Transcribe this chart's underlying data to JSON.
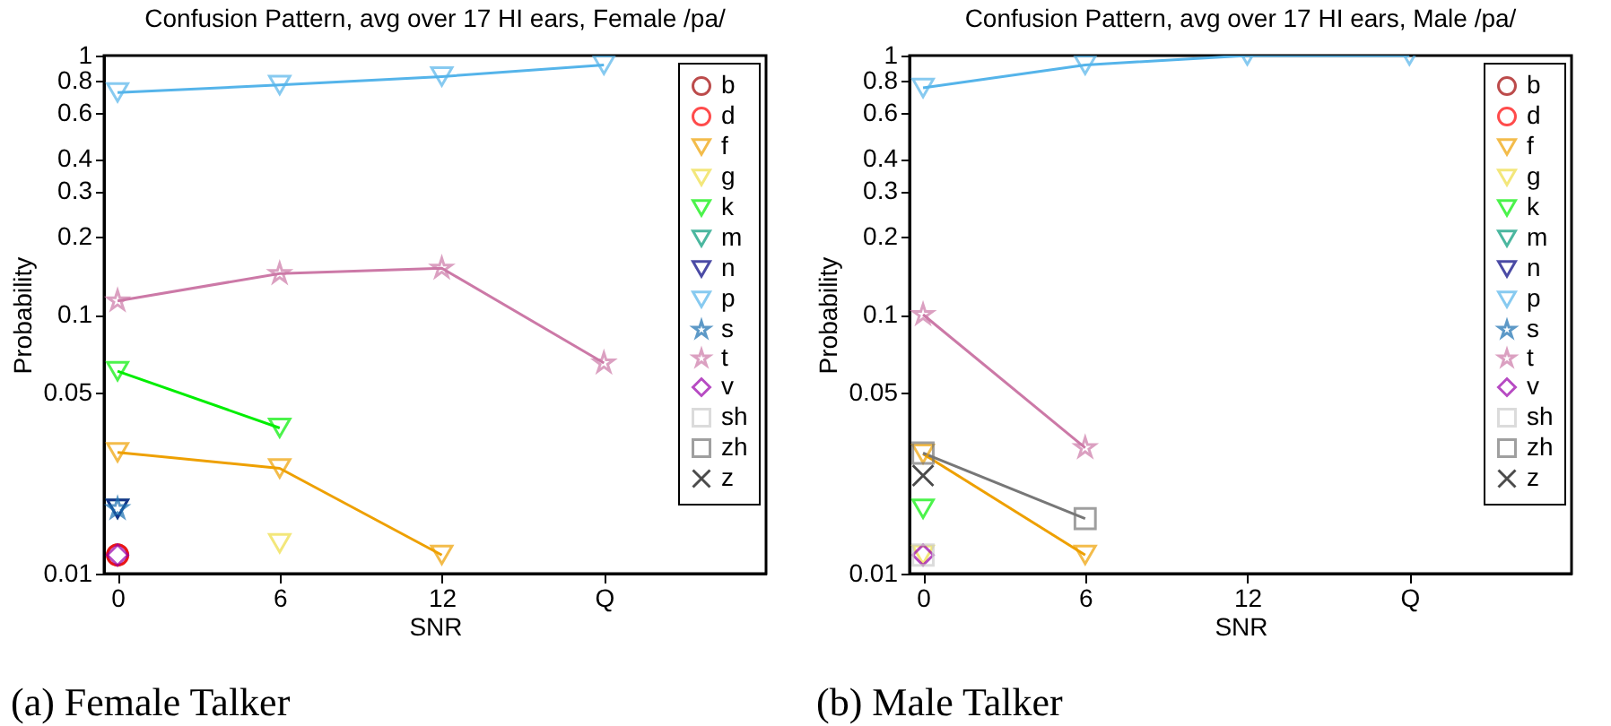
{
  "chart_data": [
    {
      "type": "line",
      "title": "Confusion Pattern, avg over 17 HI ears, Female /pa/",
      "xlabel": "SNR",
      "ylabel": "Probability",
      "annotations": [
        "(a) Female Talker"
      ],
      "x": [
        0,
        6,
        12,
        18
      ],
      "xlim": [
        -0.5,
        24
      ],
      "xticks": [
        0,
        6,
        12,
        {
          "value": 18,
          "label": "Q"
        }
      ],
      "ylim": [
        0.01,
        1
      ],
      "yticks": [
        0.01,
        0.05,
        0.1,
        0.2,
        0.3,
        0.4,
        0.6,
        0.8,
        1
      ],
      "log": true,
      "grid": false,
      "legend": "top right",
      "series": [
        {
          "name": "b",
          "color": "#a00000",
          "marker": "circle",
          "values": [
            0.0118,
            null,
            null,
            null
          ]
        },
        {
          "name": "d",
          "color": "#ff0000",
          "marker": "circle",
          "values": [
            0.0118,
            null,
            null,
            null
          ]
        },
        {
          "name": "f",
          "color": "#eea000",
          "marker": "triangle",
          "values": [
            0.0294,
            0.0255,
            0.0118,
            null
          ]
        },
        {
          "name": "g",
          "color": "#eedd44",
          "marker": "triangle",
          "values": [
            null,
            0.0131,
            null,
            null
          ]
        },
        {
          "name": "k",
          "color": "#00ee00",
          "marker": "triangle",
          "values": [
            0.0605,
            0.0365,
            null,
            null
          ]
        },
        {
          "name": "m",
          "color": "#009977",
          "marker": "triangle",
          "values": [
            0.0178,
            null,
            null,
            null
          ]
        },
        {
          "name": "n",
          "color": "#000080",
          "marker": "triangle",
          "values": [
            0.0178,
            null,
            null,
            null
          ]
        },
        {
          "name": "p",
          "color": "#55b4ea",
          "marker": "triangle",
          "values": [
            0.72,
            0.77,
            0.83,
            0.92
          ]
        },
        {
          "name": "s",
          "color": "#1a6fb0",
          "marker": "star",
          "values": [
            0.0178,
            null,
            null,
            null
          ]
        },
        {
          "name": "t",
          "color": "#cc79a7",
          "marker": "star",
          "values": [
            0.113,
            0.144,
            0.151,
            0.065
          ]
        },
        {
          "name": "v",
          "color": "#9900aa",
          "marker": "diamond",
          "values": [
            0.0118,
            null,
            null,
            null
          ]
        },
        {
          "name": "sh",
          "color": "#cccccc",
          "marker": "square",
          "values": [
            null,
            null,
            null,
            null
          ]
        },
        {
          "name": "zh",
          "color": "#777777",
          "marker": "square",
          "values": [
            null,
            null,
            null,
            null
          ]
        },
        {
          "name": "z",
          "color": "#000000",
          "marker": "cross",
          "values": [
            null,
            null,
            null,
            null
          ]
        }
      ]
    },
    {
      "type": "line",
      "title": "Confusion Pattern, avg over 17 HI ears, Male /pa/",
      "xlabel": "SNR",
      "ylabel": "Probability",
      "annotations": [
        "(b) Male Talker"
      ],
      "x": [
        0,
        6,
        12,
        18
      ],
      "xlim": [
        -0.5,
        24
      ],
      "xticks": [
        0,
        6,
        12,
        {
          "value": 18,
          "label": "Q"
        }
      ],
      "ylim": [
        0.01,
        1
      ],
      "yticks": [
        0.01,
        0.05,
        0.1,
        0.2,
        0.3,
        0.4,
        0.6,
        0.8,
        1
      ],
      "log": true,
      "grid": false,
      "legend": "top right",
      "series": [
        {
          "name": "b",
          "color": "#a00000",
          "marker": "circle",
          "values": [
            null,
            null,
            null,
            null
          ]
        },
        {
          "name": "d",
          "color": "#ff0000",
          "marker": "circle",
          "values": [
            null,
            null,
            null,
            null
          ]
        },
        {
          "name": "f",
          "color": "#eea000",
          "marker": "triangle",
          "values": [
            0.029,
            0.0118,
            null,
            null
          ]
        },
        {
          "name": "g",
          "color": "#eedd44",
          "marker": "triangle",
          "values": [
            0.0118,
            null,
            null,
            null
          ]
        },
        {
          "name": "k",
          "color": "#00ee00",
          "marker": "triangle",
          "values": [
            0.0178,
            null,
            null,
            null
          ]
        },
        {
          "name": "m",
          "color": "#009977",
          "marker": "triangle",
          "values": [
            null,
            null,
            null,
            null
          ]
        },
        {
          "name": "n",
          "color": "#000080",
          "marker": "triangle",
          "values": [
            null,
            null,
            null,
            null
          ]
        },
        {
          "name": "p",
          "color": "#55b4ea",
          "marker": "triangle",
          "values": [
            0.75,
            0.92,
            1,
            1
          ]
        },
        {
          "name": "s",
          "color": "#1a6fb0",
          "marker": "star",
          "values": [
            null,
            null,
            null,
            null
          ]
        },
        {
          "name": "t",
          "color": "#cc79a7",
          "marker": "star",
          "values": [
            0.1,
            0.0306,
            null,
            null
          ]
        },
        {
          "name": "v",
          "color": "#9900aa",
          "marker": "diamond",
          "values": [
            0.0118,
            null,
            null,
            null
          ]
        },
        {
          "name": "sh",
          "color": "#cccccc",
          "marker": "square",
          "values": [
            0.0118,
            null,
            null,
            null
          ]
        },
        {
          "name": "zh",
          "color": "#777777",
          "marker": "square",
          "values": [
            0.0292,
            0.0163,
            null,
            null
          ]
        },
        {
          "name": "z",
          "color": "#000000",
          "marker": "cross",
          "values": [
            0.0239,
            null,
            null,
            null
          ]
        }
      ]
    }
  ]
}
